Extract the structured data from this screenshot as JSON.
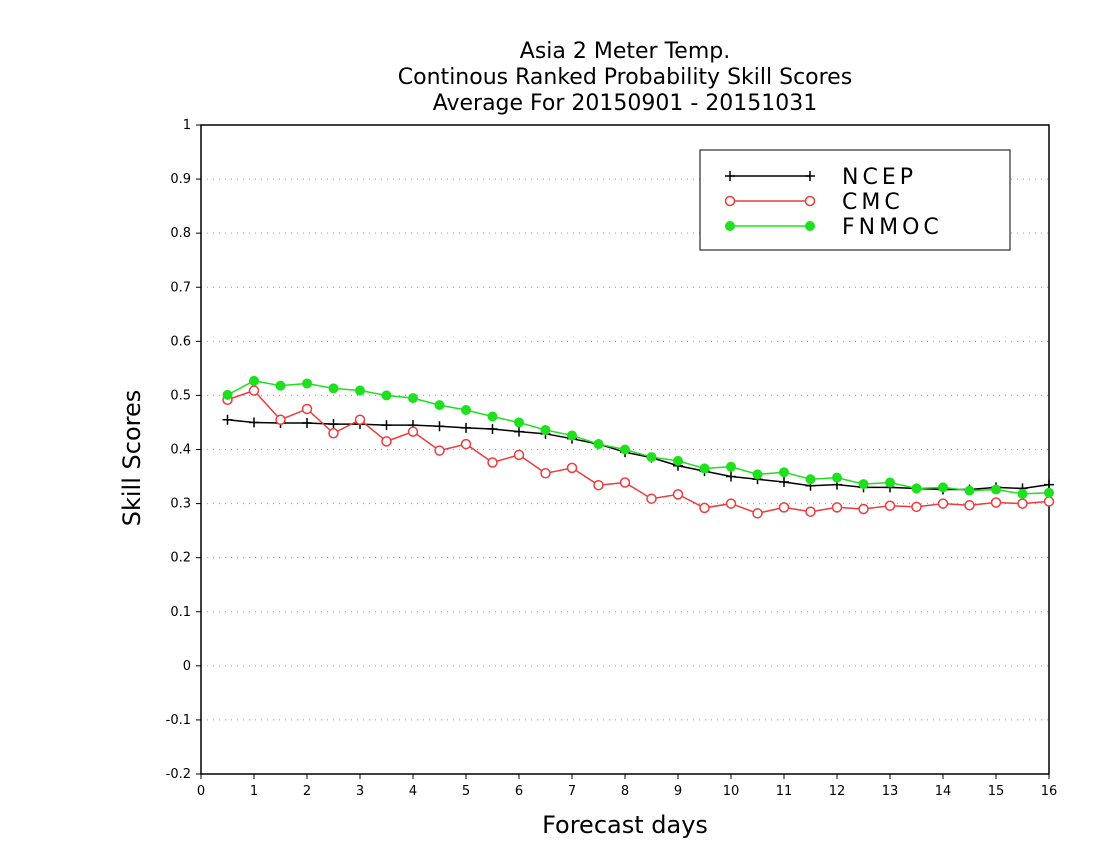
{
  "chart_data": {
    "type": "line",
    "title_lines": [
      "Asia 2 Meter Temp.",
      "Continous Ranked Probability Skill Scores",
      "Average For 20150901 - 20151031"
    ],
    "xlabel": "Forecast days",
    "ylabel": "Skill Scores",
    "xlim": [
      0,
      16
    ],
    "ylim": [
      -0.2,
      1
    ],
    "xticks": [
      "0",
      "1",
      "2",
      "3",
      "4",
      "5",
      "6",
      "7",
      "8",
      "9",
      "10",
      "11",
      "12",
      "13",
      "14",
      "15",
      "16"
    ],
    "yticks": [
      "-0.2",
      "-0.1",
      "0",
      "0.1",
      "0.2",
      "0.3",
      "0.4",
      "0.5",
      "0.6",
      "0.7",
      "0.8",
      "0.9",
      "1"
    ],
    "grid": true,
    "legend_position": "top-right",
    "x": [
      0.5,
      1,
      1.5,
      2,
      2.5,
      3,
      3.5,
      4,
      4.5,
      5,
      5.5,
      6,
      6.5,
      7,
      7.5,
      8,
      8.5,
      9,
      9.5,
      10,
      10.5,
      11,
      11.5,
      12,
      12.5,
      13,
      13.5,
      14,
      14.5,
      15,
      15.5,
      16
    ],
    "series": [
      {
        "name": "NCEP",
        "color": "#000000",
        "marker": "plus",
        "values": [
          0.455,
          0.45,
          0.449,
          0.449,
          0.447,
          0.447,
          0.445,
          0.445,
          0.443,
          0.44,
          0.438,
          0.433,
          0.429,
          0.42,
          0.41,
          0.395,
          0.385,
          0.37,
          0.36,
          0.35,
          0.345,
          0.34,
          0.333,
          0.335,
          0.33,
          0.33,
          0.328,
          0.326,
          0.326,
          0.33,
          0.328,
          0.335
        ]
      },
      {
        "name": "CMC",
        "color": "#ef3b3b",
        "marker": "open-circle",
        "values": [
          0.492,
          0.509,
          0.455,
          0.475,
          0.43,
          0.455,
          0.415,
          0.433,
          0.398,
          0.41,
          0.376,
          0.39,
          0.356,
          0.366,
          0.334,
          0.339,
          0.309,
          0.317,
          0.292,
          0.3,
          0.282,
          0.293,
          0.285,
          0.293,
          0.29,
          0.296,
          0.294,
          0.3,
          0.297,
          0.302,
          0.3,
          0.304
        ]
      },
      {
        "name": "FNMOC",
        "color": "#1ee01e",
        "marker": "filled-circle",
        "values": [
          0.501,
          0.527,
          0.518,
          0.522,
          0.513,
          0.509,
          0.5,
          0.495,
          0.482,
          0.473,
          0.461,
          0.45,
          0.436,
          0.426,
          0.41,
          0.4,
          0.386,
          0.379,
          0.365,
          0.368,
          0.354,
          0.358,
          0.345,
          0.348,
          0.336,
          0.339,
          0.328,
          0.33,
          0.324,
          0.326,
          0.318,
          0.32
        ]
      }
    ]
  }
}
